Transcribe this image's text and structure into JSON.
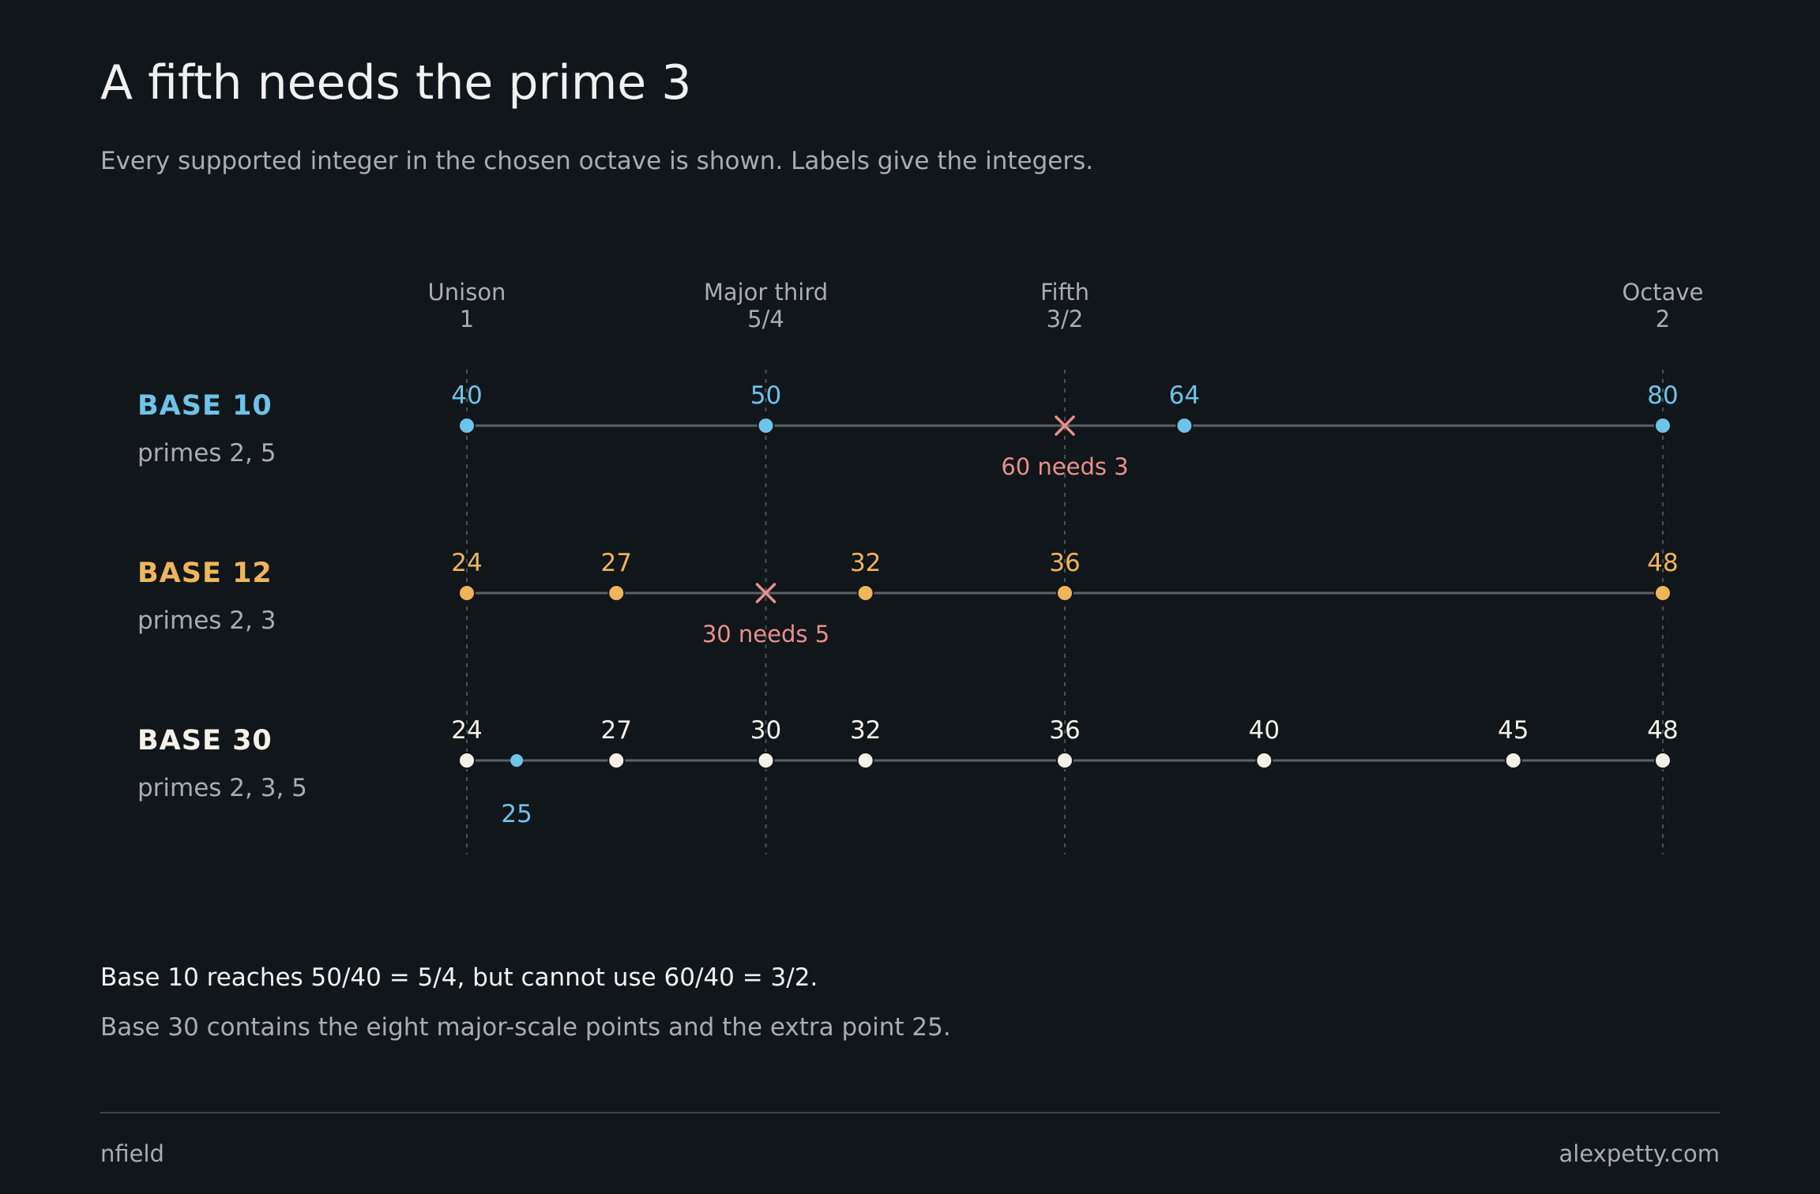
{
  "title": "A fifth needs the prime 3",
  "subtitle": "Every supported integer in the chosen octave is shown. Labels give the integers.",
  "chart_data": {
    "type": "scatter",
    "x_domain": [
      1,
      2
    ],
    "columns": [
      {
        "name": "Unison",
        "ratio_label": "1",
        "value": 1
      },
      {
        "name": "Major third",
        "ratio_label": "5/4",
        "value": 1.25
      },
      {
        "name": "Fifth",
        "ratio_label": "3/2",
        "value": 1.5
      },
      {
        "name": "Octave",
        "ratio_label": "2",
        "value": 2
      }
    ],
    "rows": [
      {
        "name": "BASE 10",
        "primes": "primes 2, 5",
        "color": "#6ec3ea",
        "base": 40,
        "points": [
          {
            "n": 40
          },
          {
            "n": 50
          },
          {
            "n": 64
          },
          {
            "n": 80
          }
        ],
        "missing": [
          {
            "n": 60,
            "label": "60 needs 3"
          }
        ]
      },
      {
        "name": "BASE 12",
        "primes": "primes 2, 3",
        "color": "#efb55a",
        "base": 24,
        "points": [
          {
            "n": 24
          },
          {
            "n": 27
          },
          {
            "n": 32
          },
          {
            "n": 36
          },
          {
            "n": 48
          }
        ],
        "missing": [
          {
            "n": 30,
            "label": "30 needs 5"
          }
        ]
      },
      {
        "name": "BASE 30",
        "primes": "primes 2, 3, 5",
        "color": "#f4f1e8",
        "base": 24,
        "points": [
          {
            "n": 24
          },
          {
            "n": 25,
            "extra": true
          },
          {
            "n": 27
          },
          {
            "n": 30
          },
          {
            "n": 32
          },
          {
            "n": 36
          },
          {
            "n": 40
          },
          {
            "n": 45
          },
          {
            "n": 48
          }
        ],
        "missing": []
      }
    ],
    "extra_color": "#6ec3ea",
    "missing_color": "#e8908f"
  },
  "notes": [
    "Base 10 reaches 50/40 = 5/4, but cannot use 60/40 = 3/2.",
    "Base 30 contains the eight major-scale points and the extra point 25."
  ],
  "footer": {
    "left": "nfield",
    "right": "alexpetty.com"
  }
}
